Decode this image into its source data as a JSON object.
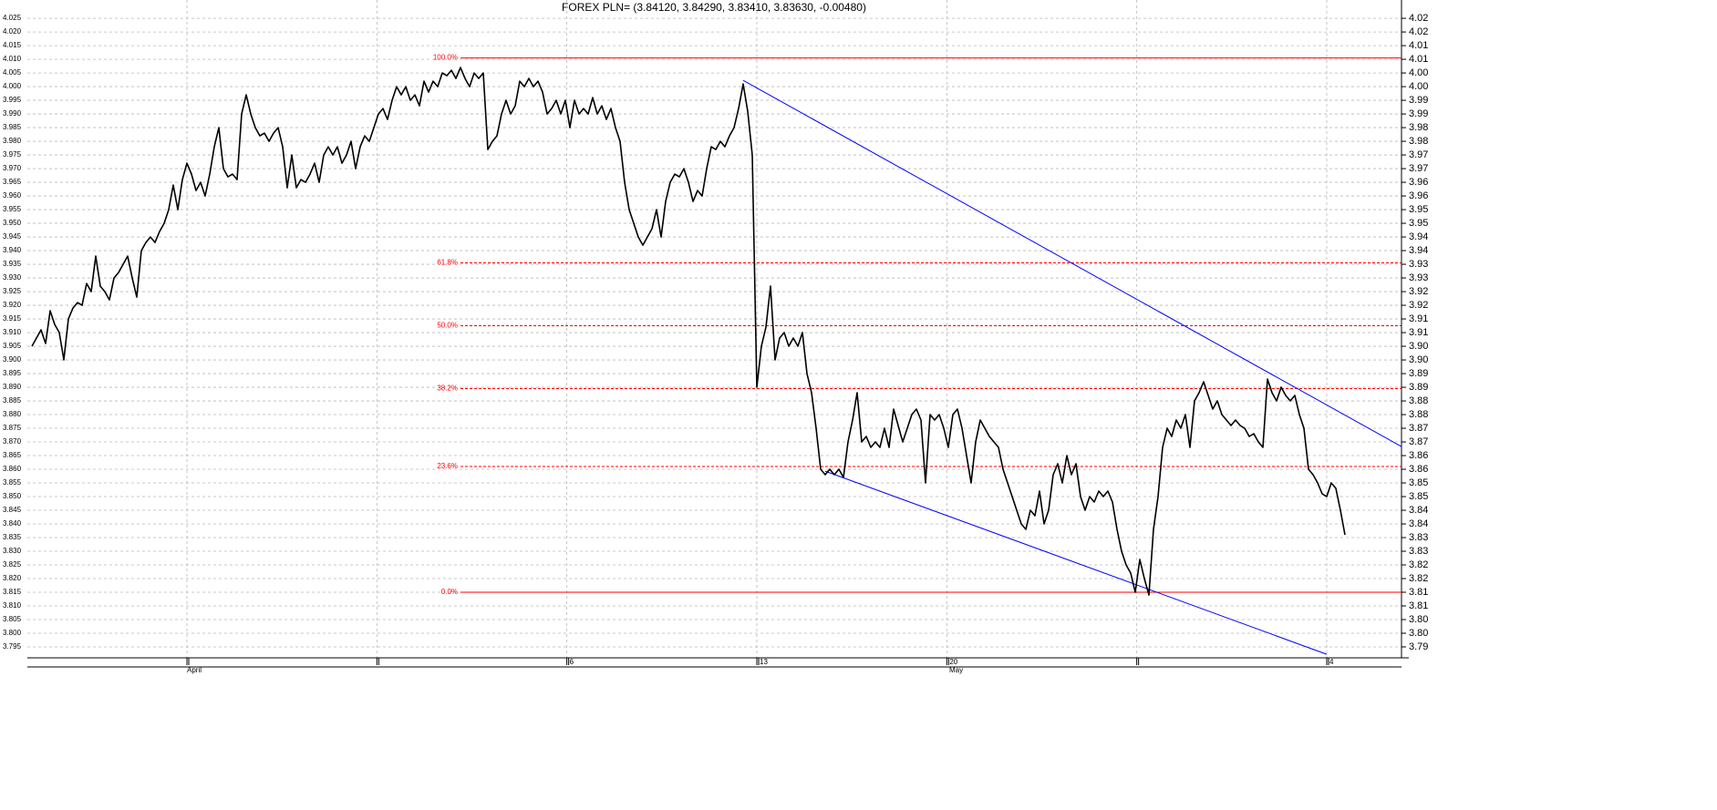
{
  "chart_data": {
    "type": "line",
    "title": "FOREX PLN= (3.84120, 3.84290, 3.83410, 3.83630, -0.00480)",
    "series": [
      {
        "name": "FOREX PLN=",
        "color": "#000000",
        "values": [
          3.905,
          3.908,
          3.911,
          3.906,
          3.918,
          3.913,
          3.91,
          3.9,
          3.915,
          3.919,
          3.921,
          3.92,
          3.928,
          3.925,
          3.938,
          3.927,
          3.925,
          3.922,
          3.93,
          3.932,
          3.935,
          3.938,
          3.93,
          3.923,
          3.94,
          3.943,
          3.945,
          3.943,
          3.947,
          3.95,
          3.955,
          3.964,
          3.955,
          3.966,
          3.972,
          3.968,
          3.962,
          3.965,
          3.96,
          3.968,
          3.978,
          3.985,
          3.97,
          3.967,
          3.968,
          3.966,
          3.99,
          3.997,
          3.99,
          3.985,
          3.982,
          3.983,
          3.98,
          3.983,
          3.985,
          3.978,
          3.963,
          3.975,
          3.963,
          3.966,
          3.965,
          3.968,
          3.972,
          3.965,
          3.975,
          3.978,
          3.975,
          3.978,
          3.972,
          3.975,
          3.98,
          3.97,
          3.978,
          3.982,
          3.98,
          3.985,
          3.99,
          3.992,
          3.988,
          3.995,
          4.0,
          3.997,
          4.0,
          3.995,
          3.997,
          3.993,
          4.002,
          3.998,
          4.002,
          4.0,
          4.005,
          4.004,
          4.006,
          4.003,
          4.007,
          4.003,
          4.0,
          4.005,
          4.003,
          4.005,
          3.977,
          3.98,
          3.982,
          3.99,
          3.995,
          3.99,
          3.993,
          4.002,
          4.0,
          4.003,
          4.0,
          4.002,
          3.998,
          3.99,
          3.992,
          3.995,
          3.99,
          3.995,
          3.985,
          3.995,
          3.99,
          3.992,
          3.99,
          3.996,
          3.99,
          3.993,
          3.988,
          3.992,
          3.985,
          3.98,
          3.965,
          3.955,
          3.95,
          3.945,
          3.942,
          3.945,
          3.948,
          3.955,
          3.945,
          3.958,
          3.965,
          3.968,
          3.967,
          3.97,
          3.965,
          3.958,
          3.962,
          3.96,
          3.97,
          3.978,
          3.977,
          3.98,
          3.978,
          3.982,
          3.985,
          3.992,
          4.001,
          3.991,
          3.975,
          3.89,
          3.905,
          3.912,
          3.927,
          3.9,
          3.908,
          3.91,
          3.905,
          3.908,
          3.905,
          3.91,
          3.895,
          3.888,
          3.875,
          3.86,
          3.858,
          3.86,
          3.858,
          3.86,
          3.857,
          3.87,
          3.878,
          3.888,
          3.87,
          3.872,
          3.868,
          3.87,
          3.868,
          3.875,
          3.868,
          3.882,
          3.876,
          3.87,
          3.875,
          3.88,
          3.882,
          3.878,
          3.855,
          3.88,
          3.878,
          3.88,
          3.875,
          3.868,
          3.88,
          3.882,
          3.875,
          3.865,
          3.855,
          3.87,
          3.878,
          3.875,
          3.872,
          3.87,
          3.868,
          3.86,
          3.855,
          3.85,
          3.845,
          3.84,
          3.838,
          3.845,
          3.843,
          3.852,
          3.84,
          3.845,
          3.858,
          3.862,
          3.855,
          3.865,
          3.858,
          3.862,
          3.85,
          3.845,
          3.85,
          3.848,
          3.852,
          3.85,
          3.852,
          3.848,
          3.838,
          3.83,
          3.825,
          3.822,
          3.815,
          3.827,
          3.82,
          3.814,
          3.838,
          3.85,
          3.868,
          3.875,
          3.872,
          3.878,
          3.875,
          3.88,
          3.868,
          3.885,
          3.888,
          3.892,
          3.887,
          3.882,
          3.885,
          3.88,
          3.878,
          3.876,
          3.878,
          3.876,
          3.875,
          3.872,
          3.873,
          3.87,
          3.868,
          3.893,
          3.888,
          3.885,
          3.89,
          3.887,
          3.885,
          3.887,
          3.88,
          3.875,
          3.86,
          3.858,
          3.855,
          3.851,
          3.85,
          3.855,
          3.853,
          3.845,
          3.836
        ]
      }
    ],
    "xlim": [
      -1,
      300.4
    ],
    "xticks": [
      {
        "value": 34,
        "label": null
      },
      {
        "value": 75.67,
        "label": null
      },
      {
        "value": 117.33,
        "label": "6"
      },
      {
        "value": 159,
        "label": "13"
      },
      {
        "value": 200.67,
        "label": "20"
      },
      {
        "value": 242.33,
        "label": null
      },
      {
        "value": 284,
        "label": "4"
      }
    ],
    "month_labels": [
      {
        "value": 34,
        "label": "April"
      },
      {
        "value": 201.2,
        "label": "May"
      }
    ],
    "ylim": [
      3.791,
      4.0317
    ],
    "yticks": [
      4.025,
      {
        "value": 4.02,
        "label": "4.020"
      },
      4.015,
      {
        "value": 4.01,
        "label": "4.010"
      },
      4.005,
      {
        "value": 4.0,
        "label": "4.000"
      },
      3.995,
      {
        "value": 3.99,
        "label": "3.990"
      },
      3.985,
      {
        "value": 3.98,
        "label": "3.980"
      },
      3.975,
      {
        "value": 3.97,
        "label": "3.970"
      },
      3.965,
      {
        "value": 3.96,
        "label": "3.960"
      },
      3.955,
      {
        "value": 3.95,
        "label": "3.950"
      },
      3.945,
      {
        "value": 3.94,
        "label": "3.940"
      },
      3.935,
      {
        "value": 3.93,
        "label": "3.930"
      },
      3.925,
      {
        "value": 3.92,
        "label": "3.920"
      },
      3.915,
      {
        "value": 3.91,
        "label": "3.910"
      },
      3.905,
      {
        "value": 3.9,
        "label": "3.900"
      },
      3.895,
      {
        "value": 3.89,
        "label": "3.890"
      },
      3.885,
      {
        "value": 3.88,
        "label": "3.880"
      },
      3.875,
      {
        "value": 3.87,
        "label": "3.870"
      },
      3.865,
      {
        "value": 3.86,
        "label": "3.860"
      },
      3.855,
      {
        "value": 3.85,
        "label": "3.850"
      },
      3.845,
      {
        "value": 3.84,
        "label": "3.840"
      },
      3.835,
      {
        "value": 3.83,
        "label": "3.830"
      },
      3.825,
      {
        "value": 3.82,
        "label": "3.820"
      },
      3.815,
      {
        "value": 3.81,
        "label": "3.810"
      },
      3.805,
      {
        "value": 3.8,
        "label": "3.800"
      },
      3.795
    ],
    "y2lim": [
      3.791,
      4.0317
    ],
    "y2ticks": [
      {
        "value": 4.025,
        "label": "4.02"
      },
      {
        "value": 4.02,
        "label": "4.02"
      },
      {
        "value": 4.015,
        "label": "4.01"
      },
      {
        "value": 4.01,
        "label": "4.01"
      },
      {
        "value": 4.005,
        "label": "4.00"
      },
      {
        "value": 4.0,
        "label": "4.00"
      },
      {
        "value": 3.995,
        "label": "3.99"
      },
      {
        "value": 3.99,
        "label": "3.99"
      },
      {
        "value": 3.985,
        "label": "3.98"
      },
      {
        "value": 3.98,
        "label": "3.98"
      },
      {
        "value": 3.975,
        "label": "3.97"
      },
      {
        "value": 3.97,
        "label": "3.97"
      },
      {
        "value": 3.965,
        "label": "3.96"
      },
      {
        "value": 3.96,
        "label": "3.96"
      },
      {
        "value": 3.955,
        "label": "3.95"
      },
      {
        "value": 3.95,
        "label": "3.95"
      },
      {
        "value": 3.945,
        "label": "3.94"
      },
      {
        "value": 3.94,
        "label": "3.94"
      },
      {
        "value": 3.935,
        "label": "3.93"
      },
      {
        "value": 3.93,
        "label": "3.93"
      },
      {
        "value": 3.925,
        "label": "3.92"
      },
      {
        "value": 3.92,
        "label": "3.92"
      },
      {
        "value": 3.915,
        "label": "3.91"
      },
      {
        "value": 3.91,
        "label": "3.91"
      },
      {
        "value": 3.905,
        "label": "3.90"
      },
      {
        "value": 3.9,
        "label": "3.90"
      },
      {
        "value": 3.895,
        "label": "3.89"
      },
      {
        "value": 3.89,
        "label": "3.89"
      },
      {
        "value": 3.885,
        "label": "3.88"
      },
      {
        "value": 3.88,
        "label": "3.88"
      },
      {
        "value": 3.875,
        "label": "3.87"
      },
      {
        "value": 3.87,
        "label": "3.87"
      },
      {
        "value": 3.865,
        "label": "3.86"
      },
      {
        "value": 3.86,
        "label": "3.86"
      },
      {
        "value": 3.855,
        "label": "3.85"
      },
      {
        "value": 3.85,
        "label": "3.85"
      },
      {
        "value": 3.845,
        "label": "3.84"
      },
      {
        "value": 3.84,
        "label": "3.84"
      },
      {
        "value": 3.835,
        "label": "3.83"
      },
      {
        "value": 3.83,
        "label": "3.83"
      },
      {
        "value": 3.825,
        "label": "3.82"
      },
      {
        "value": 3.82,
        "label": "3.82"
      },
      {
        "value": 3.815,
        "label": "3.81"
      },
      {
        "value": 3.81,
        "label": "3.81"
      },
      {
        "value": 3.805,
        "label": "3.80"
      },
      {
        "value": 3.8,
        "label": "3.80"
      },
      {
        "value": 3.795,
        "label": "3.79"
      }
    ],
    "grid": true,
    "fib_color": "#ff0000",
    "fib_start": 94,
    "fib_levels": [
      {
        "label": "100.0%",
        "value": 4.0105,
        "dashed": false
      },
      {
        "label": "61.8%",
        "value": 3.9355,
        "dashed": true
      },
      {
        "label": "50.0%",
        "value": 3.9125,
        "dashed": true
      },
      {
        "label": "38.2%",
        "value": 3.8895,
        "dashed": true
      },
      {
        "label": "23.6%",
        "value": 3.861,
        "dashed": true
      },
      {
        "label": "0.0%",
        "value": 3.815,
        "dashed": false
      }
    ],
    "trend_color": "#0000ff",
    "trend_lines": [
      {
        "x1": 156,
        "y1": 4.0023,
        "x2": 300.4,
        "y2": 3.8683
      },
      {
        "x1": 174,
        "y1": 3.8593,
        "x2": 284,
        "y2": 3.7923
      }
    ]
  }
}
